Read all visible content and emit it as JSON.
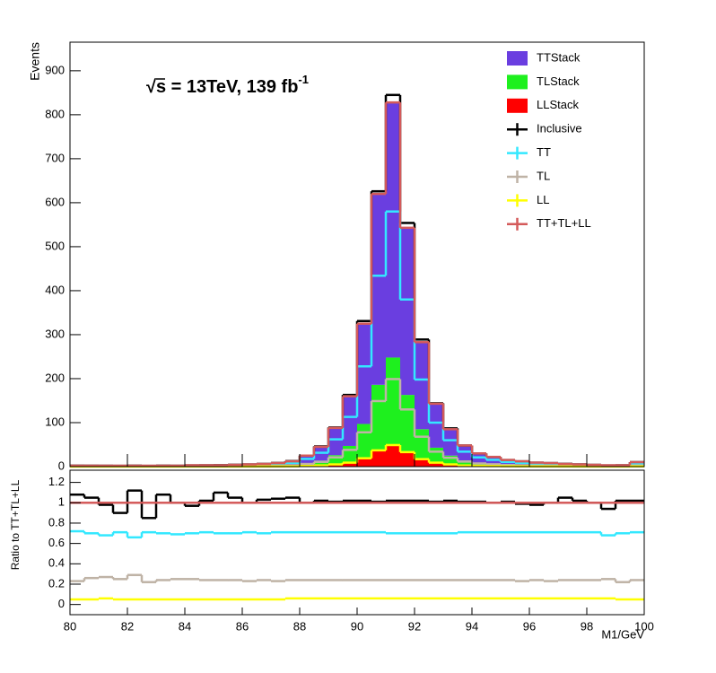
{
  "chart_data": [
    {
      "type": "histogram",
      "ylabel": "Events",
      "annotation": {
        "text": "√s = 13TeV, 139 fb",
        "superscript": "-1"
      },
      "xlim": [
        80,
        100
      ],
      "ylim": [
        0,
        965
      ],
      "yticks": [
        0,
        100,
        200,
        300,
        400,
        500,
        600,
        700,
        800,
        900
      ],
      "bins": [
        80,
        80.5,
        81,
        81.5,
        82,
        82.5,
        83,
        83.5,
        84,
        84.5,
        85,
        85.5,
        86,
        86.5,
        87,
        87.5,
        88,
        88.5,
        89,
        89.5,
        90,
        90.5,
        91,
        91.5,
        92,
        92.5,
        93,
        93.5,
        94,
        94.5,
        95,
        95.5,
        96,
        96.5,
        97,
        97.5,
        98,
        98.5,
        99,
        99.5,
        100
      ],
      "series": [
        {
          "name": "TTStack",
          "style": "fill",
          "color": "#6a3ee0",
          "values": [
            1.4,
            1.4,
            1.4,
            1.4,
            1.4,
            1.4,
            1.4,
            1.4,
            2.1,
            2.1,
            2.1,
            2.8,
            3.5,
            4.2,
            5.6,
            8.4,
            17.5,
            31.5,
            62,
            113,
            228,
            434,
            580,
            380,
            198,
            100,
            60,
            34,
            21,
            15.4,
            10.5,
            8.4,
            6.3,
            5.6,
            4.2,
            3.5,
            2.8,
            2.1,
            2.1,
            7
          ]
        },
        {
          "name": "TLStack",
          "style": "fill",
          "color": "#1ef01e",
          "values": [
            0.5,
            0.5,
            0.5,
            0.5,
            0.5,
            0.5,
            0.5,
            0.5,
            0.7,
            0.7,
            0.7,
            1,
            1.2,
            1.4,
            1.9,
            2.9,
            6,
            10.8,
            21,
            38,
            78,
            149,
            199,
            130,
            68,
            34,
            20,
            11.5,
            7.2,
            5.3,
            3.6,
            2.9,
            2.2,
            1.9,
            1.4,
            1.2,
            1,
            0.7,
            0.7,
            2.4
          ]
        },
        {
          "name": "LLStack",
          "style": "fill",
          "color": "#ff0000",
          "values": [
            0.1,
            0.1,
            0.1,
            0.1,
            0.1,
            0.1,
            0.1,
            0.1,
            0.2,
            0.2,
            0.2,
            0.2,
            0.3,
            0.4,
            0.5,
            0.7,
            1.5,
            2.7,
            5,
            9,
            19,
            37,
            49,
            33,
            17,
            9,
            5,
            2.5,
            1.8,
            1.3,
            0.9,
            0.7,
            0.5,
            0.5,
            0.4,
            0.3,
            0.2,
            0.2,
            0.2,
            0.6
          ]
        },
        {
          "name": "Inclusive",
          "style": "line",
          "color": "#000000",
          "values": [
            2.2,
            2.1,
            2,
            1.8,
            2.2,
            1.7,
            2.2,
            2,
            2.9,
            3.1,
            3.3,
            4.2,
            5,
            6.2,
            8.3,
            12.6,
            25,
            46,
            89,
            163,
            331,
            626,
            845,
            554,
            289,
            144,
            87,
            48,
            30,
            22,
            15,
            12,
            9,
            8,
            6.3,
            5.1,
            4,
            2.8,
            3.1,
            10.2
          ]
        },
        {
          "name": "TT",
          "style": "line",
          "color": "#33e8ff",
          "values": [
            1.4,
            1.4,
            1.4,
            1.4,
            1.4,
            1.4,
            1.4,
            1.4,
            2.1,
            2.1,
            2.1,
            2.8,
            3.5,
            4.2,
            5.6,
            8.4,
            17.5,
            31.5,
            62,
            113,
            228,
            434,
            580,
            380,
            198,
            100,
            60,
            34,
            21,
            15.4,
            10.5,
            8.4,
            6.3,
            5.6,
            4.2,
            3.5,
            2.8,
            2.1,
            2.1,
            7
          ]
        },
        {
          "name": "TL",
          "style": "line",
          "color": "#bfb3a6",
          "values": [
            0.5,
            0.5,
            0.5,
            0.5,
            0.5,
            0.5,
            0.5,
            0.5,
            0.7,
            0.7,
            0.7,
            1,
            1.2,
            1.4,
            1.9,
            2.9,
            6,
            10.8,
            21,
            38,
            78,
            149,
            199,
            130,
            68,
            34,
            20,
            11.5,
            7.2,
            5.3,
            3.6,
            2.9,
            2.2,
            1.9,
            1.4,
            1.2,
            1,
            0.7,
            0.7,
            2.4
          ]
        },
        {
          "name": "LL",
          "style": "line",
          "color": "#ffff00",
          "values": [
            0.1,
            0.1,
            0.1,
            0.1,
            0.1,
            0.1,
            0.1,
            0.1,
            0.2,
            0.2,
            0.2,
            0.2,
            0.3,
            0.4,
            0.5,
            0.7,
            1.5,
            2.7,
            5,
            9,
            19,
            37,
            49,
            33,
            17,
            9,
            5,
            2.5,
            1.8,
            1.3,
            0.9,
            0.7,
            0.5,
            0.5,
            0.4,
            0.3,
            0.2,
            0.2,
            0.2,
            0.6
          ]
        },
        {
          "name": "TT+TL+LL",
          "style": "line",
          "color": "#d45a5a",
          "values": [
            2,
            2,
            2,
            2,
            2,
            2,
            2,
            2,
            3,
            3,
            3,
            4,
            5,
            6,
            8,
            12,
            25,
            45,
            88,
            160,
            325,
            620,
            828,
            543,
            283,
            143,
            85,
            48,
            30,
            22,
            15,
            12,
            9,
            8,
            6,
            5,
            4,
            3,
            3,
            10
          ]
        }
      ]
    },
    {
      "type": "histogram",
      "ylabel": "Ratio to TT+TL+LL",
      "xlabel": "M1/GeV",
      "xlim": [
        80,
        100
      ],
      "ylim": [
        -0.1,
        1.32
      ],
      "xticks": [
        80,
        82,
        84,
        86,
        88,
        90,
        92,
        94,
        96,
        98,
        100
      ],
      "yticks": [
        0,
        0.2,
        0.4,
        0.6,
        0.8,
        1,
        1.2
      ],
      "bins": [
        80,
        80.5,
        81,
        81.5,
        82,
        82.5,
        83,
        83.5,
        84,
        84.5,
        85,
        85.5,
        86,
        86.5,
        87,
        87.5,
        88,
        88.5,
        89,
        89.5,
        90,
        90.5,
        91,
        91.5,
        92,
        92.5,
        93,
        93.5,
        94,
        94.5,
        95,
        95.5,
        96,
        96.5,
        97,
        97.5,
        98,
        98.5,
        99,
        99.5,
        100
      ],
      "series": [
        {
          "style": "line",
          "color": "#000000",
          "values": [
            1.08,
            1.05,
            0.98,
            0.9,
            1.12,
            0.85,
            1.08,
            1,
            0.97,
            1.02,
            1.1,
            1.05,
            1,
            1.03,
            1.04,
            1.05,
            1,
            1.02,
            1.01,
            1.02,
            1.02,
            1.01,
            1.02,
            1.02,
            1.02,
            1.01,
            1.02,
            1.01,
            1.01,
            1,
            1.01,
            0.99,
            0.98,
            1,
            1.05,
            1.02,
            1,
            0.94,
            1.02,
            1.02
          ]
        },
        {
          "style": "line",
          "color": "#33e8ff",
          "values": [
            0.72,
            0.7,
            0.68,
            0.71,
            0.66,
            0.71,
            0.7,
            0.69,
            0.7,
            0.71,
            0.7,
            0.7,
            0.71,
            0.7,
            0.71,
            0.71,
            0.71,
            0.71,
            0.71,
            0.71,
            0.71,
            0.71,
            0.7,
            0.7,
            0.7,
            0.7,
            0.7,
            0.71,
            0.71,
            0.71,
            0.71,
            0.71,
            0.71,
            0.71,
            0.71,
            0.71,
            0.71,
            0.68,
            0.7,
            0.71
          ]
        },
        {
          "style": "line",
          "color": "#bfb3a6",
          "values": [
            0.23,
            0.26,
            0.27,
            0.25,
            0.29,
            0.22,
            0.24,
            0.25,
            0.25,
            0.24,
            0.24,
            0.24,
            0.23,
            0.24,
            0.23,
            0.24,
            0.24,
            0.24,
            0.24,
            0.24,
            0.24,
            0.24,
            0.24,
            0.24,
            0.24,
            0.24,
            0.24,
            0.24,
            0.24,
            0.24,
            0.24,
            0.23,
            0.24,
            0.23,
            0.24,
            0.24,
            0.24,
            0.25,
            0.22,
            0.24
          ]
        },
        {
          "style": "line",
          "color": "#ffff00",
          "values": [
            0.05,
            0.05,
            0.06,
            0.05,
            0.05,
            0.05,
            0.05,
            0.05,
            0.05,
            0.05,
            0.05,
            0.05,
            0.05,
            0.05,
            0.05,
            0.06,
            0.06,
            0.06,
            0.06,
            0.06,
            0.06,
            0.06,
            0.06,
            0.06,
            0.06,
            0.06,
            0.06,
            0.06,
            0.06,
            0.06,
            0.06,
            0.06,
            0.06,
            0.06,
            0.06,
            0.06,
            0.06,
            0.06,
            0.05,
            0.05
          ]
        },
        {
          "style": "line",
          "color": "#d45a5a",
          "values": [
            1,
            1,
            1,
            1,
            1,
            1,
            1,
            1,
            1,
            1,
            1,
            1,
            1,
            1,
            1,
            1,
            1,
            1,
            1,
            1,
            1,
            1,
            1,
            1,
            1,
            1,
            1,
            1,
            1,
            1,
            1,
            1,
            1,
            1,
            1,
            1,
            1,
            1,
            1,
            1
          ]
        }
      ]
    }
  ]
}
